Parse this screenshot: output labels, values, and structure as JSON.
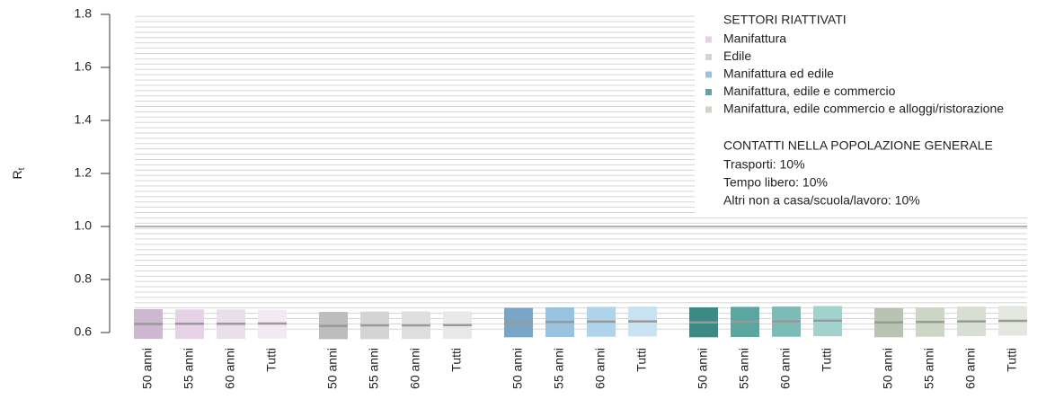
{
  "chart_data": {
    "type": "range-bar",
    "ylabel": {
      "main": "R",
      "sub": "t"
    },
    "ylim": [
      0.6,
      1.8
    ],
    "yticks": [
      {
        "value": 0.6,
        "label": "0.6"
      },
      {
        "value": 0.8,
        "label": "0.8"
      },
      {
        "value": 1.0,
        "label": "1.0"
      },
      {
        "value": 1.2,
        "label": "1.2"
      },
      {
        "value": 1.4,
        "label": "1.4"
      },
      {
        "value": 1.6,
        "label": "1.6"
      },
      {
        "value": 1.8,
        "label": "1.8"
      }
    ],
    "reference_line": 1.0,
    "categories": [
      "50 anni",
      "55 anni",
      "60 anni",
      "Tutti"
    ],
    "legend_title": "SETTORI RIATTIVATI",
    "series": [
      {
        "name": "Manifattura",
        "colors": [
          "#cdb9cf",
          "#e6d2e6",
          "#ebdeeb",
          "#f2e9f2"
        ],
        "low": [
          0.576,
          0.576,
          0.576,
          0.577
        ],
        "high": [
          0.688,
          0.687,
          0.687,
          0.686
        ],
        "median": [
          0.632,
          0.633,
          0.633,
          0.634
        ]
      },
      {
        "name": "Edile",
        "colors": [
          "#bdbdbd",
          "#d4d4d4",
          "#dedede",
          "#e8e8e8"
        ],
        "low": [
          0.575,
          0.575,
          0.576,
          0.576
        ],
        "high": [
          0.678,
          0.679,
          0.68,
          0.68
        ],
        "median": [
          0.625,
          0.627,
          0.627,
          0.628
        ]
      },
      {
        "name": "Manifattura ed edile",
        "colors": [
          "#79a6c6",
          "#98c2e0",
          "#b0d3ec",
          "#c8e2f2"
        ],
        "low": [
          0.582,
          0.583,
          0.584,
          0.585
        ],
        "high": [
          0.693,
          0.695,
          0.697,
          0.698
        ],
        "median": [
          0.637,
          0.64,
          0.641,
          0.642
        ]
      },
      {
        "name": "Manifattura, edile e commercio",
        "colors": [
          "#3b8a84",
          "#5aa6a0",
          "#7cbcb7",
          "#a2d2ce"
        ],
        "low": [
          0.582,
          0.583,
          0.584,
          0.586
        ],
        "high": [
          0.695,
          0.697,
          0.698,
          0.7
        ],
        "median": [
          0.638,
          0.641,
          0.642,
          0.645
        ]
      },
      {
        "name": "Manifattura, edile commercio e alloggi/ristorazione",
        "colors": [
          "#b8c4b2",
          "#cbd6c5",
          "#d6dfd1",
          "#e2e8de"
        ],
        "low": [
          0.582,
          0.584,
          0.586,
          0.588
        ],
        "high": [
          0.692,
          0.695,
          0.698,
          0.7
        ],
        "median": [
          0.638,
          0.64,
          0.642,
          0.644
        ]
      }
    ],
    "contacts_title": "CONTATTI NELLA POPOLAZIONE GENERALE",
    "contacts": [
      "Trasporti: 10%",
      "Tempo libero: 10%",
      "Altri non a casa/scuola/lavoro: 10%"
    ]
  }
}
